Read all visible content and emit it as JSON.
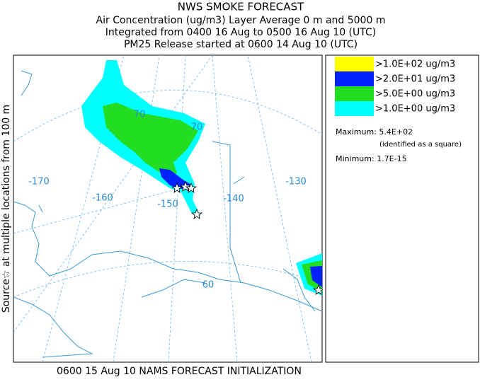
{
  "header": {
    "lines": [
      "NWS SMOKE FORECAST",
      "Air Concentration (ug/m3) Layer Average    0 m and  5000 m",
      "Integrated from 0400 16 Aug to 0500 16 Aug 10 (UTC)",
      "PM25 Release started at 0600 14 Aug 10 (UTC)"
    ]
  },
  "side_label": "Source☆ at multiple locations    from    100 m",
  "legend": {
    "items": [
      {
        "label": ">1.0E+02 ug/m3",
        "color": "#ffff00"
      },
      {
        "label": ">2.0E+01 ug/m3",
        "color": "#0022ff"
      },
      {
        "label": ">5.0E+00 ug/m3",
        "color": "#22dd22"
      },
      {
        "label": ">1.0E+00 ug/m3",
        "color": "#00ffff"
      }
    ],
    "maximum": "Maximum: 5.4E+02",
    "maximum_note": "(identified as a square)",
    "minimum": "Minimum: 1.7E-15"
  },
  "map": {
    "labels": [
      "-170",
      "-160",
      "-150",
      "-140",
      "-130",
      "70",
      "70",
      "60"
    ]
  },
  "footer": "0600 15 Aug 10 NAMS FORECAST INITIALIZATION"
}
